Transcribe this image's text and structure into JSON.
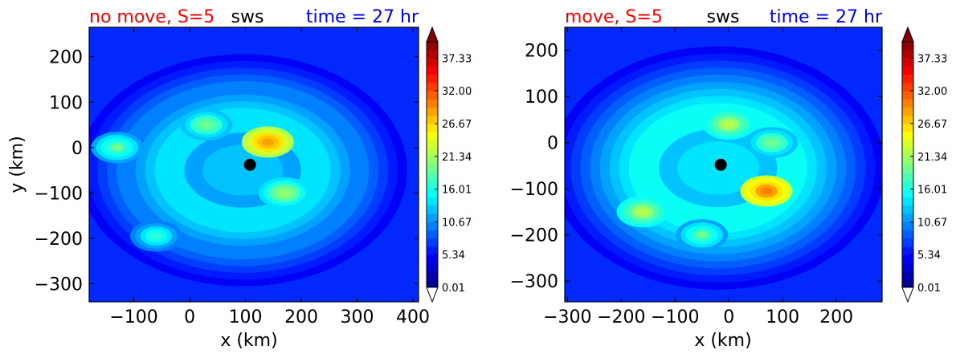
{
  "chart_data": [
    {
      "type": "heatmap",
      "title_left": "no move, S=5",
      "title_center": "sws",
      "title_right": "time = 27 hr",
      "xlabel": "x (km)",
      "ylabel": "y (km)",
      "xlim": [
        -180,
        410
      ],
      "ylim": [
        -340,
        265
      ],
      "xticks": [
        -100,
        0,
        100,
        200,
        300,
        400
      ],
      "xtick_labels": [
        "−100",
        "0",
        "100",
        "200",
        "300",
        "400"
      ],
      "yticks": [
        200,
        100,
        0,
        -100,
        -200,
        -300
      ],
      "ytick_labels": [
        "200",
        "100",
        "0",
        "−100",
        "−200",
        "−300"
      ],
      "center_marker": {
        "x": 108,
        "y": -38
      },
      "field_features": [
        {
          "kind": "ring",
          "cx": 95,
          "cy": -50,
          "rx": 190,
          "ry": 165,
          "level": 14
        },
        {
          "kind": "max",
          "x": 140,
          "y": 12,
          "level": 29
        },
        {
          "kind": "max",
          "x": 170,
          "y": -100,
          "level": 21
        },
        {
          "kind": "max",
          "x": 30,
          "y": 50,
          "level": 20
        },
        {
          "kind": "max",
          "x": -130,
          "y": 0,
          "level": 19
        },
        {
          "kind": "max",
          "x": -60,
          "y": -195,
          "level": 17
        }
      ]
    },
    {
      "type": "heatmap",
      "title_left": "move, S=5",
      "title_center": "sws",
      "title_right": "time = 27 hr",
      "xlabel": "x (km)",
      "ylabel": "",
      "xlim": [
        -305,
        285
      ],
      "ylim": [
        -345,
        250
      ],
      "xticks": [
        -300,
        -200,
        -100,
        0,
        100,
        200
      ],
      "xtick_labels": [
        "−300",
        "−200",
        "−100",
        "0",
        "100",
        "200"
      ],
      "yticks": [
        200,
        100,
        0,
        -100,
        -200,
        -300
      ],
      "ytick_labels": [
        "200",
        "100",
        "0",
        "−100",
        "−200",
        "−300"
      ],
      "center_marker": {
        "x": -15,
        "y": -48
      },
      "field_features": [
        {
          "kind": "ring",
          "cx": -20,
          "cy": -55,
          "rx": 200,
          "ry": 170,
          "level": 15
        },
        {
          "kind": "max",
          "x": 0,
          "y": 40,
          "level": 22
        },
        {
          "kind": "max",
          "x": 70,
          "y": -105,
          "level": 30
        },
        {
          "kind": "max",
          "x": -160,
          "y": -150,
          "level": 22
        },
        {
          "kind": "max",
          "x": 80,
          "y": 0,
          "level": 20
        },
        {
          "kind": "max",
          "x": -50,
          "y": -200,
          "level": 19
        }
      ]
    }
  ],
  "colorbar": {
    "tick_labels": [
      "37.33",
      "32.00",
      "26.67",
      "21.34",
      "16.01",
      "10.67",
      "5.34",
      "0.01"
    ],
    "tick_values": [
      37.33,
      32.0,
      26.67,
      21.34,
      16.01,
      10.67,
      5.34,
      0.01
    ],
    "vmin": 0.01,
    "vmax": 40.0,
    "levels": 30,
    "colormap": "jet",
    "extend": "both"
  },
  "colors": {
    "title_left": "#ff0000",
    "title_center": "#000000",
    "title_right": "#0000ff",
    "background_field": "#0022ff",
    "marker": "#000000"
  }
}
